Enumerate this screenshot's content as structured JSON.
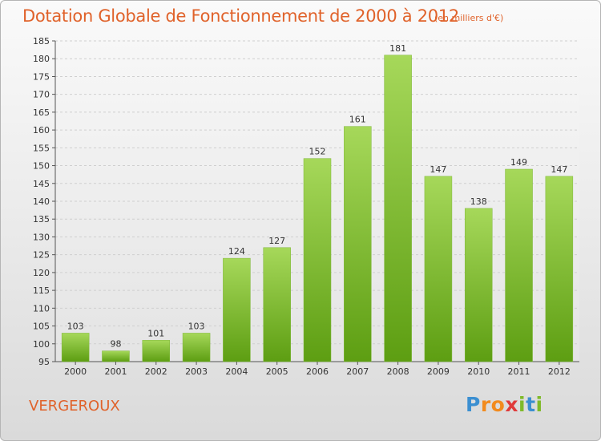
{
  "title": "Dotation Globale de Fonctionnement de 2000 à 2012",
  "subtitle": "(en milliers d'€)",
  "place": "VERGEROUX",
  "logo": {
    "text": "Proxiti",
    "letters": [
      "P",
      "r",
      "o",
      "x",
      "i",
      "t",
      "i"
    ],
    "letter_colors": [
      "#3b8fd1",
      "#f28b1e",
      "#f28b1e",
      "#e03a3a",
      "#7fba2a",
      "#3b8fd1",
      "#7fba2a"
    ]
  },
  "colors": {
    "bar_top": "#a6d85a",
    "bar_bottom": "#5d9e12",
    "accent": "#e0622a"
  },
  "chart_data": {
    "type": "bar",
    "title": "Dotation Globale de Fonctionnement de 2000 à 2012",
    "subtitle": "(en milliers d'€)",
    "categories": [
      "2000",
      "2001",
      "2002",
      "2003",
      "2004",
      "2005",
      "2006",
      "2007",
      "2008",
      "2009",
      "2010",
      "2011",
      "2012"
    ],
    "values": [
      103,
      98,
      101,
      103,
      124,
      127,
      152,
      161,
      181,
      147,
      138,
      149,
      147
    ],
    "ylim": [
      95,
      185
    ],
    "yticks": [
      95,
      100,
      105,
      110,
      115,
      120,
      125,
      130,
      135,
      140,
      145,
      150,
      155,
      160,
      165,
      170,
      175,
      180,
      185
    ],
    "grid": true,
    "legend": "none"
  }
}
